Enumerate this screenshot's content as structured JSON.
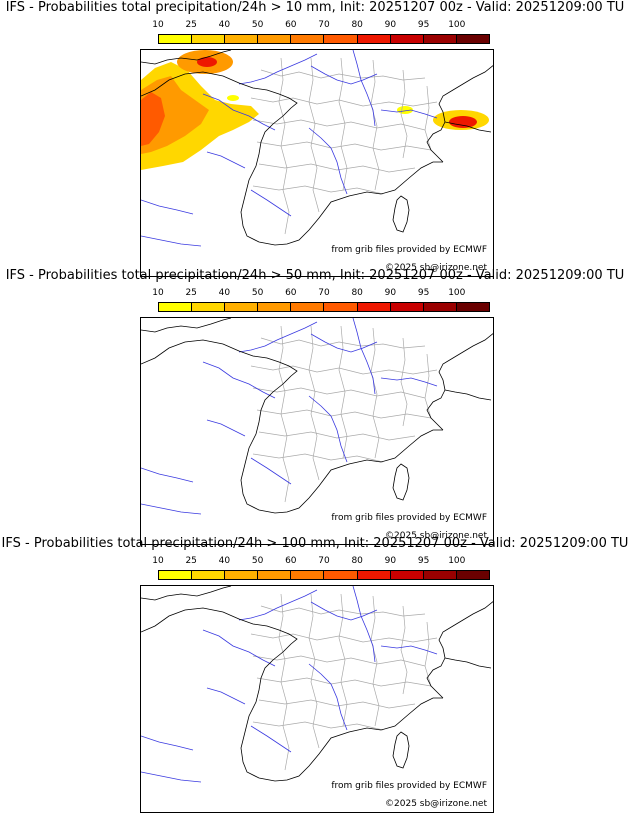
{
  "panels": [
    {
      "title": "IFS - Probabilities total precipitation/24h > 10 mm, Init: 20251207 00z - Valid: 20251209:00 TU",
      "threshold_mm": 10,
      "has_precip": true
    },
    {
      "title": "IFS - Probabilities total precipitation/24h > 50 mm, Init: 20251207 00z - Valid: 20251209:00 TU",
      "threshold_mm": 50,
      "has_precip": false
    },
    {
      "title": "IFS - Probabilities total precipitation/24h > 100 mm, Init: 20251207 00z - Valid: 20251209:00 TU",
      "threshold_mm": 100,
      "has_precip": false
    }
  ],
  "colorbar": {
    "ticks": [
      "10",
      "25",
      "40",
      "50",
      "60",
      "70",
      "80",
      "90",
      "95",
      "100"
    ],
    "colors": [
      "#ffff00",
      "#ffd700",
      "#ffb000",
      "#ff9a00",
      "#ff7a00",
      "#ff5a00",
      "#ee1800",
      "#c80000",
      "#9a0000",
      "#6a0000"
    ]
  },
  "credits": {
    "source": "from grib files provided by ECMWF",
    "copyright": "©2025 sb@irizone.net"
  },
  "map_layers": [
    "coastline-country-border",
    "rivers",
    "departement-borders"
  ],
  "colors": {
    "river": "#3a3ae0",
    "coast": "#000000",
    "dept": "#aaaaaa"
  }
}
